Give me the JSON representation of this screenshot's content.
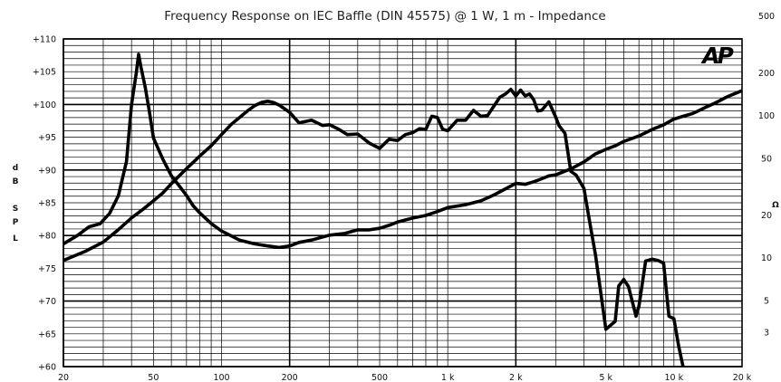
{
  "chart_data": {
    "type": "line",
    "title": "Frequency Response on IEC Baffle (DIN 45575) @ 1 W, 1 m - Impedance",
    "logo": "AP",
    "xlabel": "",
    "x_scale": "log",
    "xlim": [
      20,
      20000
    ],
    "x_ticks": [
      {
        "value": 20,
        "label": "20"
      },
      {
        "value": 50,
        "label": "50"
      },
      {
        "value": 100,
        "label": "100"
      },
      {
        "value": 200,
        "label": "200"
      },
      {
        "value": 500,
        "label": "500"
      },
      {
        "value": 1000,
        "label": "1 k"
      },
      {
        "value": 2000,
        "label": "2 k"
      },
      {
        "value": 5000,
        "label": "5 k"
      },
      {
        "value": 10000,
        "label": "10 k"
      },
      {
        "value": 20000,
        "label": "20 k"
      }
    ],
    "y_left": {
      "label_chars": [
        "d",
        "B",
        "",
        "S",
        "P",
        "L"
      ],
      "ylim": [
        60,
        110
      ],
      "ticks": [
        {
          "value": 110,
          "label": "+110"
        },
        {
          "value": 105,
          "label": "+105"
        },
        {
          "value": 100,
          "label": "+100"
        },
        {
          "value": 95,
          "label": "+95"
        },
        {
          "value": 90,
          "label": "+90"
        },
        {
          "value": 85,
          "label": "+85"
        },
        {
          "value": 80,
          "label": "+80"
        },
        {
          "value": 75,
          "label": "+75"
        },
        {
          "value": 70,
          "label": "+70"
        },
        {
          "value": 65,
          "label": "+65"
        },
        {
          "value": 60,
          "label": "+60"
        }
      ]
    },
    "y_right": {
      "label": "Ω",
      "scale": "log",
      "ticks": [
        {
          "value": 500,
          "label": "500"
        },
        {
          "value": 200,
          "label": "200"
        },
        {
          "value": 100,
          "label": "100"
        },
        {
          "value": 50,
          "label": "50"
        },
        {
          "value": 20,
          "label": "20"
        },
        {
          "value": 10,
          "label": "10"
        },
        {
          "value": 5,
          "label": "5"
        },
        {
          "value": 3,
          "label": "3"
        }
      ]
    },
    "series": [
      {
        "axis": "left",
        "x": [
          20,
          25,
          30,
          35,
          40,
          45,
          50,
          55,
          60,
          65,
          70,
          80,
          90,
          100,
          110,
          120,
          130,
          140,
          150,
          160,
          170,
          180,
          200,
          220,
          250,
          280,
          300,
          330,
          360,
          400,
          450,
          500,
          550,
          600,
          650,
          700,
          750,
          800,
          850,
          900,
          950,
          1000,
          1100,
          1200,
          1300,
          1400,
          1500,
          1700,
          1800,
          1900,
          2000,
          2100,
          2200,
          2300,
          2400,
          2500,
          2600,
          2800,
          3000,
          3100,
          3300,
          3500,
          3700,
          4000,
          4200,
          4500,
          5000,
          5500,
          5700,
          6000,
          6300,
          6800,
          7000,
          7500,
          8000,
          8500,
          9000,
          9500,
          10000,
          10500,
          11000,
          11500,
          12000
        ],
        "y": [
          76.2,
          77.6,
          79.0,
          80.9,
          82.7,
          84.0,
          85.3,
          86.5,
          87.9,
          89.1,
          90.2,
          92.1,
          93.7,
          95.4,
          96.9,
          98.0,
          99.0,
          99.8,
          100.3,
          100.5,
          100.3,
          99.9,
          98.8,
          97.2,
          97.6,
          96.8,
          96.9,
          96.2,
          95.4,
          95.5,
          94.1,
          93.3,
          94.7,
          94.5,
          95.4,
          95.7,
          96.3,
          96.2,
          98.2,
          98.0,
          96.2,
          96.0,
          97.6,
          97.6,
          99.1,
          98.2,
          98.3,
          101.1,
          101.6,
          102.3,
          101.3,
          102.2,
          101.3,
          101.6,
          100.7,
          99.0,
          99.1,
          100.4,
          98.1,
          96.8,
          95.6,
          89.8,
          89.2,
          87.2,
          82.9,
          77.0,
          65.7,
          66.9,
          72.3,
          73.3,
          72.2,
          67.7,
          69.2,
          76.1,
          76.4,
          76.2,
          75.8,
          67.7,
          67.3,
          63.1,
          59.8,
          58.3,
          57.3
        ]
      },
      {
        "axis": "right",
        "x": [
          20,
          23,
          26,
          29,
          32,
          35,
          38,
          40,
          42,
          43,
          44,
          46,
          48,
          50,
          55,
          60,
          65,
          70,
          75,
          80,
          90,
          100,
          120,
          140,
          160,
          180,
          200,
          220,
          250,
          300,
          350,
          400,
          450,
          500,
          550,
          600,
          700,
          800,
          900,
          1000,
          1200,
          1400,
          1600,
          1800,
          2000,
          2200,
          2400,
          2600,
          2800,
          3000,
          3500,
          4000,
          4500,
          5000,
          5500,
          6000,
          7000,
          8000,
          9000,
          10000,
          11000,
          12000,
          13000,
          14000,
          15000,
          16000,
          17000,
          18000,
          20000
        ],
        "y": [
          12.5,
          14.3,
          16.5,
          17.3,
          20.5,
          27.3,
          47.5,
          119.8,
          198.6,
          269.6,
          220.2,
          157.9,
          106.2,
          69.4,
          49.3,
          37.7,
          32.0,
          27.4,
          23.1,
          20.7,
          17.4,
          15.4,
          13.3,
          12.5,
          12.1,
          11.8,
          12.1,
          12.8,
          13.3,
          14.4,
          14.8,
          15.7,
          15.7,
          16.1,
          16.9,
          17.8,
          19.0,
          19.8,
          21.1,
          22.5,
          23.6,
          25.1,
          27.6,
          30.5,
          33.3,
          32.8,
          34.2,
          35.9,
          37.6,
          38.2,
          42.1,
          47.1,
          53.7,
          57.8,
          61.2,
          65.7,
          71.8,
          79.6,
          85.9,
          94.4,
          98.7,
          102.7,
          109.0,
          115.3,
          121.1,
          127.4,
          134.2,
          139.5,
          149.3
        ]
      }
    ]
  }
}
